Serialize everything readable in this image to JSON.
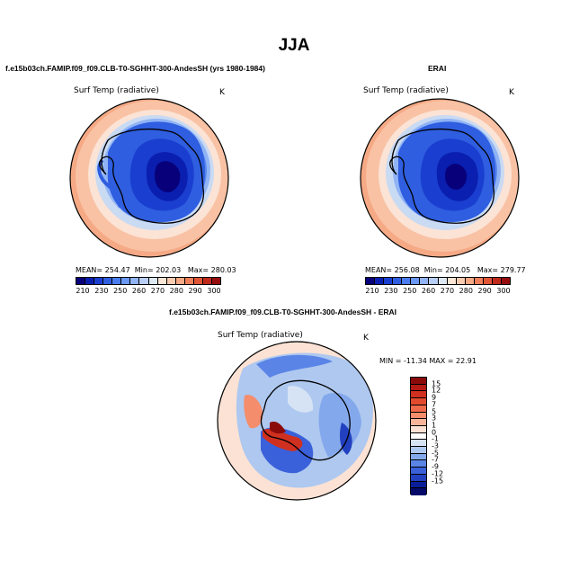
{
  "title": "JJA",
  "panels": {
    "model": {
      "case_title": "f.e15b03ch.FAMIP.f09_f09.CLB-T0-SGHHT-300-AndesSH (yrs 1980-1984)",
      "field_label": "Surf Temp (radiative)",
      "units": "K",
      "mean_label": "MEAN=",
      "mean_value": "254.47",
      "min_label": "Min=",
      "min_value": "202.03",
      "max_label": "Max=",
      "max_value": "280.03"
    },
    "obs": {
      "case_title": "ERAI",
      "field_label": "Surf Temp (radiative)",
      "units": "K",
      "mean_label": "MEAN=",
      "mean_value": "256.08",
      "min_label": "Min=",
      "min_value": "204.05",
      "max_label": "Max=",
      "max_value": "279.77"
    },
    "diff": {
      "case_title": "f.e15b03ch.FAMIP.f09_f09.CLB-T0-SGHHT-300-AndesSH - ERAI",
      "field_label": "Surf Temp (radiative)",
      "units": "K",
      "minmax_text": "MIN = -11.34  MAX =  22.91"
    }
  },
  "chart_data": [
    {
      "type": "heatmap",
      "projection": "south polar stereographic",
      "region": "Antarctica / Southern Ocean",
      "title": "f.e15b03ch.FAMIP.f09_f09.CLB-T0-SGHHT-300-AndesSH (yrs 1980-1984)",
      "field": "Surf Temp (radiative)",
      "units": "K",
      "mean": 254.47,
      "min": 202.03,
      "max": 280.03,
      "colorbar_levels": [
        210,
        230,
        250,
        260,
        270,
        280,
        290,
        300
      ],
      "colorbar_colors": [
        "#08007a",
        "#0a1fb0",
        "#1a3fd0",
        "#2f5ee0",
        "#4a7cf0",
        "#6a98f5",
        "#8fb3f5",
        "#b8cef5",
        "#dde8f5",
        "#fbe6d6",
        "#f9cbb0",
        "#f5a985",
        "#ee7f5a",
        "#e05536",
        "#c02a1c",
        "#960d0d"
      ]
    },
    {
      "type": "heatmap",
      "projection": "south polar stereographic",
      "region": "Antarctica / Southern Ocean",
      "title": "ERAI",
      "field": "Surf Temp (radiative)",
      "units": "K",
      "mean": 256.08,
      "min": 204.05,
      "max": 279.77,
      "colorbar_levels": [
        210,
        230,
        250,
        260,
        270,
        280,
        290,
        300
      ]
    },
    {
      "type": "heatmap",
      "projection": "south polar stereographic",
      "region": "Antarctica / Southern Ocean",
      "title": "f.e15b03ch.FAMIP.f09_f09.CLB-T0-SGHHT-300-AndesSH - ERAI",
      "field": "Surf Temp (radiative)",
      "units": "K",
      "min": -11.34,
      "max": 22.91,
      "colorbar_levels": [
        15,
        12,
        9,
        7,
        5,
        3,
        1,
        0,
        -1,
        -3,
        -5,
        -7,
        -9,
        -12,
        -15
      ],
      "colorbar_colors": [
        "#8b0a0a",
        "#b31b14",
        "#d0301f",
        "#e24a2e",
        "#ef6a4a",
        "#f48d6c",
        "#f8b59a",
        "#fbe2d4",
        "#ffffff",
        "#d6e3f5",
        "#aec8f0",
        "#84a8ec",
        "#5a84e6",
        "#3a60da",
        "#2240c0",
        "#0a1e9a",
        "#050a6a"
      ]
    }
  ]
}
